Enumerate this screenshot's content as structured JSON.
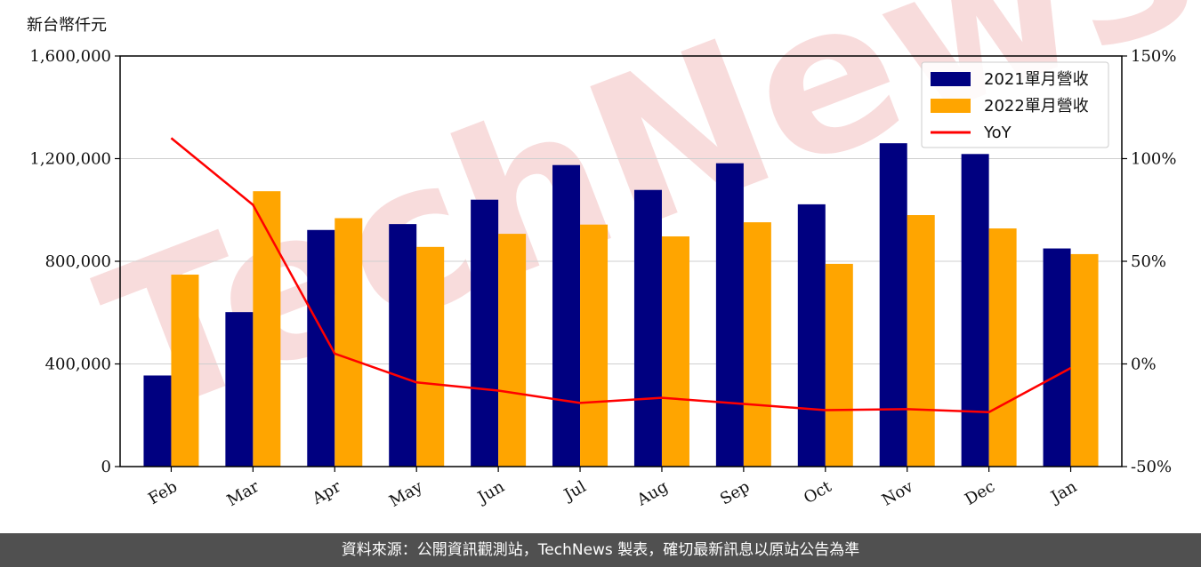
{
  "unit_label": "新台幣仟元",
  "footer_text": "資料來源：公開資訊觀測站，TechNews 製表，確切最新訊息以原站公告為準",
  "watermark_text": "TechNews",
  "colors": {
    "series_2021": "#000080",
    "series_2022": "#FFA500",
    "yoy": "#FF0000",
    "watermark": "#f2c0c0"
  },
  "chart_data": {
    "type": "bar",
    "categories": [
      "Feb",
      "Mar",
      "Apr",
      "May",
      "Jun",
      "Jul",
      "Aug",
      "Sep",
      "Oct",
      "Nov",
      "Dec",
      "Jan"
    ],
    "series": [
      {
        "name": "2021單月營收",
        "axis": "left",
        "values": [
          355000,
          602000,
          922000,
          945000,
          1040000,
          1175000,
          1078000,
          1182000,
          1022000,
          1260000,
          1218000,
          850000
        ]
      },
      {
        "name": "2022單月營收",
        "axis": "left",
        "values": [
          748000,
          1073000,
          968000,
          856000,
          907000,
          943000,
          897000,
          952000,
          790000,
          980000,
          928000,
          828000
        ]
      },
      {
        "name": "YoY",
        "type": "line",
        "axis": "right",
        "values": [
          110,
          77.5,
          5,
          -9,
          -13,
          -19,
          -16.5,
          -19.5,
          -22.5,
          -22,
          -23.5,
          -2
        ]
      }
    ],
    "y_left": {
      "ylim": [
        0,
        1600000
      ],
      "ticks": [
        0,
        400000,
        800000,
        1200000,
        1600000
      ],
      "tick_labels": [
        "0",
        "400,000",
        "800,000",
        "1,200,000",
        "1,600,000"
      ]
    },
    "y_right": {
      "ylim": [
        -50,
        150
      ],
      "ticks": [
        -50,
        0,
        50,
        100,
        150
      ],
      "tick_labels": [
        "-50%",
        "0%",
        "50%",
        "100%",
        "150%"
      ]
    },
    "grid": true,
    "legend_placement": "top-right"
  }
}
